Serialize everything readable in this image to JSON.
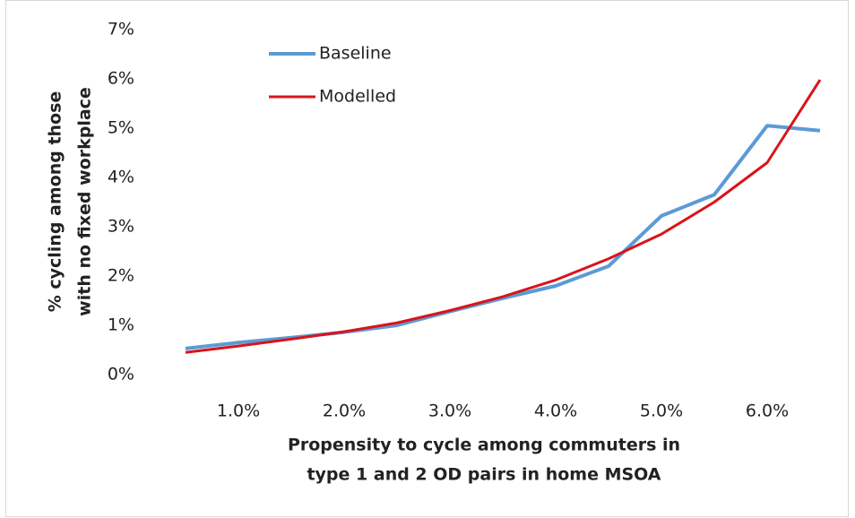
{
  "chart_data": {
    "type": "line",
    "xlabel": [
      "Propensity to cycle among commuters in",
      "type 1 and 2 OD pairs in home MSOA"
    ],
    "ylabel": [
      "% cycling among those",
      "with no fixed workplace"
    ],
    "x": [
      0.5,
      1.0,
      1.5,
      2.0,
      2.5,
      3.0,
      3.5,
      4.0,
      4.5,
      5.0,
      5.5,
      6.0,
      6.5
    ],
    "series": [
      {
        "name": "Baseline",
        "color": "#5b9bd5",
        "values": [
          0.53,
          0.65,
          0.75,
          0.86,
          1.0,
          1.28,
          1.55,
          1.8,
          2.2,
          3.22,
          3.65,
          5.05,
          4.95
        ]
      },
      {
        "name": "Modelled",
        "color": "#d9141b",
        "values": [
          0.45,
          0.58,
          0.72,
          0.87,
          1.05,
          1.3,
          1.58,
          1.92,
          2.35,
          2.85,
          3.5,
          4.3,
          5.98
        ]
      }
    ],
    "xlim": [
      0.25,
      6.75
    ],
    "xticks": [
      {
        "value": 1,
        "label": "1.0%"
      },
      {
        "value": 2,
        "label": "2.0%"
      },
      {
        "value": 3,
        "label": "3.0%"
      },
      {
        "value": 4,
        "label": "4.0%"
      },
      {
        "value": 5,
        "label": "5.0%"
      },
      {
        "value": 6,
        "label": "6.0%"
      }
    ],
    "ylim": [
      0,
      7
    ],
    "yticks": [
      {
        "value": 0,
        "label": "0%"
      },
      {
        "value": 1,
        "label": "1%"
      },
      {
        "value": 2,
        "label": "2%"
      },
      {
        "value": 3,
        "label": "3%"
      },
      {
        "value": 4,
        "label": "4%"
      },
      {
        "value": 5,
        "label": "5%"
      },
      {
        "value": 6,
        "label": "6%"
      },
      {
        "value": 7,
        "label": "7%"
      }
    ],
    "grid": false,
    "legend": "top-left"
  }
}
